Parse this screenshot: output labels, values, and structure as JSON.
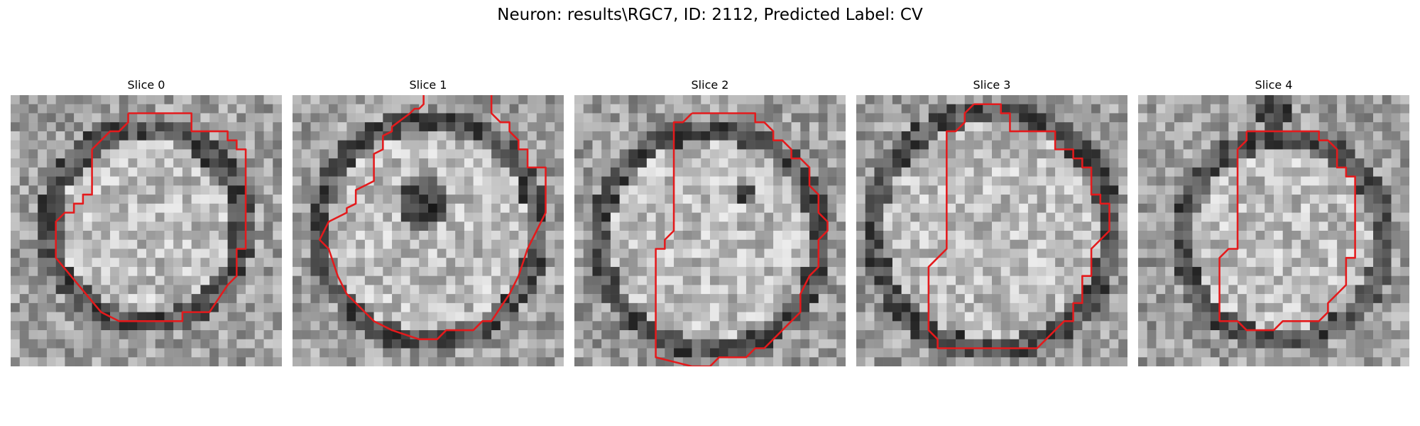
{
  "figure": {
    "title": "Neuron: results\\RGC7, ID: 2112, Predicted Label: CV"
  },
  "grid_size": 30,
  "contour_color": "#e41a1c",
  "panels": [
    {
      "title": "Slice 0",
      "image": {
        "description": "grayscale patch: bright round cell body with dark ring",
        "center": [
          15,
          14.5
        ],
        "radius": 10.5,
        "dark_blob": null
      },
      "contour": [
        [
          13,
          2
        ],
        [
          20,
          2
        ],
        [
          20,
          4
        ],
        [
          24,
          4
        ],
        [
          24,
          5
        ],
        [
          25,
          5
        ],
        [
          25,
          6
        ],
        [
          26,
          6
        ],
        [
          26,
          17
        ],
        [
          25,
          17
        ],
        [
          25,
          20
        ],
        [
          24,
          21
        ],
        [
          22,
          24
        ],
        [
          19,
          24
        ],
        [
          19,
          25
        ],
        [
          12,
          25
        ],
        [
          10,
          24
        ],
        [
          10,
          24
        ],
        [
          5,
          18
        ],
        [
          5,
          18
        ],
        [
          5,
          14
        ],
        [
          6,
          13
        ],
        [
          7,
          13
        ],
        [
          7,
          12
        ],
        [
          8,
          12
        ],
        [
          8,
          11
        ],
        [
          9,
          11
        ],
        [
          9,
          6
        ],
        [
          11,
          4
        ],
        [
          12,
          4
        ],
        [
          13,
          3
        ],
        [
          13,
          2
        ]
      ]
    },
    {
      "title": "Slice 1",
      "image": {
        "description": "grayscale patch: cell body with dark nucleus spot at upper center",
        "center": [
          15,
          15
        ],
        "radius": 12,
        "dark_blob": [
          14.5,
          12,
          3
        ]
      },
      "contour": [
        [
          14.5,
          0
        ],
        [
          14.5,
          1
        ],
        [
          14,
          1.5
        ],
        [
          13.5,
          1.5
        ],
        [
          13,
          2
        ],
        [
          11,
          3.5
        ],
        [
          11,
          4
        ],
        [
          10,
          4.5
        ],
        [
          10,
          6
        ],
        [
          9,
          6.5
        ],
        [
          9,
          9.5
        ],
        [
          7,
          10.5
        ],
        [
          7,
          12
        ],
        [
          6,
          12.5
        ],
        [
          6,
          13
        ],
        [
          5,
          13.5
        ],
        [
          4,
          14
        ],
        [
          3,
          16
        ],
        [
          4,
          17
        ],
        [
          5,
          20
        ],
        [
          6,
          22
        ],
        [
          8,
          24
        ],
        [
          9,
          25
        ],
        [
          11,
          26
        ],
        [
          14,
          27
        ],
        [
          16,
          27
        ],
        [
          17,
          26
        ],
        [
          20,
          26
        ],
        [
          21,
          25
        ],
        [
          22,
          25
        ],
        [
          24,
          22
        ],
        [
          25,
          20
        ],
        [
          26,
          17
        ],
        [
          27,
          15
        ],
        [
          28,
          13
        ],
        [
          28,
          8
        ],
        [
          26,
          8
        ],
        [
          26,
          6
        ],
        [
          25,
          6
        ],
        [
          25,
          5
        ],
        [
          24,
          4
        ],
        [
          24,
          3
        ],
        [
          23,
          3
        ],
        [
          22,
          2
        ],
        [
          22,
          0
        ]
      ]
    },
    {
      "title": "Slice 2",
      "image": {
        "description": "grayscale patch: textured cell body with dark ring and small dark spot",
        "center": [
          15,
          16
        ],
        "radius": 12,
        "dark_blob": [
          19,
          11,
          1
        ]
      },
      "contour": [
        [
          13,
          2
        ],
        [
          20,
          2
        ],
        [
          20,
          3
        ],
        [
          21,
          3
        ],
        [
          22,
          4
        ],
        [
          22,
          5
        ],
        [
          23,
          5
        ],
        [
          24,
          6
        ],
        [
          24,
          7
        ],
        [
          25,
          7
        ],
        [
          26,
          8
        ],
        [
          26,
          10
        ],
        [
          27,
          11
        ],
        [
          27,
          13
        ],
        [
          28,
          14
        ],
        [
          28,
          15
        ],
        [
          27,
          16
        ],
        [
          27,
          19
        ],
        [
          26,
          20
        ],
        [
          25,
          22
        ],
        [
          25,
          24
        ],
        [
          24,
          25
        ],
        [
          22,
          27
        ],
        [
          21,
          28
        ],
        [
          20,
          28
        ],
        [
          19,
          29
        ],
        [
          16,
          29
        ],
        [
          15,
          30
        ],
        [
          13,
          30
        ],
        [
          9,
          29
        ],
        [
          9,
          17
        ],
        [
          10,
          17
        ],
        [
          10,
          16
        ],
        [
          11,
          15
        ],
        [
          11,
          3
        ],
        [
          12,
          3
        ],
        [
          13,
          2
        ]
      ]
    },
    {
      "title": "Slice 3",
      "image": {
        "description": "grayscale patch: mottled cell body with dark edges",
        "center": [
          15,
          15
        ],
        "radius": 13,
        "dark_blob": null
      },
      "contour": [
        [
          13,
          1
        ],
        [
          16,
          1
        ],
        [
          16,
          2
        ],
        [
          17,
          2
        ],
        [
          17,
          4
        ],
        [
          22,
          4
        ],
        [
          22,
          6
        ],
        [
          24,
          6
        ],
        [
          24,
          7
        ],
        [
          25,
          7
        ],
        [
          25,
          8
        ],
        [
          26,
          8
        ],
        [
          26,
          11
        ],
        [
          27,
          11
        ],
        [
          27,
          12
        ],
        [
          28,
          12
        ],
        [
          28,
          15
        ],
        [
          27,
          16
        ],
        [
          26,
          17
        ],
        [
          26,
          20
        ],
        [
          25,
          20
        ],
        [
          25,
          23
        ],
        [
          24,
          23
        ],
        [
          24,
          25
        ],
        [
          23,
          25
        ],
        [
          21,
          27
        ],
        [
          20,
          28
        ],
        [
          9,
          28
        ],
        [
          9,
          27
        ],
        [
          8,
          26
        ],
        [
          8,
          19
        ],
        [
          9,
          18
        ],
        [
          10,
          17
        ],
        [
          10,
          4
        ],
        [
          11,
          4
        ],
        [
          12,
          3
        ],
        [
          12,
          2
        ],
        [
          13,
          1
        ]
      ]
    },
    {
      "title": "Slice 4",
      "image": {
        "description": "grayscale patch: lighter cell body with dark spot at top",
        "center": [
          16,
          16
        ],
        "radius": 11,
        "dark_blob": [
          15,
          2,
          2
        ]
      },
      "contour": [
        [
          12,
          4
        ],
        [
          20,
          4
        ],
        [
          20,
          5
        ],
        [
          21,
          5
        ],
        [
          22,
          6
        ],
        [
          22,
          8
        ],
        [
          23,
          8
        ],
        [
          23,
          9
        ],
        [
          24,
          9
        ],
        [
          24,
          18
        ],
        [
          23,
          18
        ],
        [
          23,
          21
        ],
        [
          22,
          22
        ],
        [
          21,
          23
        ],
        [
          21,
          24
        ],
        [
          20,
          25
        ],
        [
          16,
          25
        ],
        [
          15,
          26
        ],
        [
          12,
          26
        ],
        [
          11,
          25
        ],
        [
          9,
          25
        ],
        [
          9,
          18
        ],
        [
          10,
          17
        ],
        [
          11,
          17
        ],
        [
          11,
          6
        ],
        [
          12,
          5
        ],
        [
          12,
          4
        ]
      ]
    }
  ]
}
